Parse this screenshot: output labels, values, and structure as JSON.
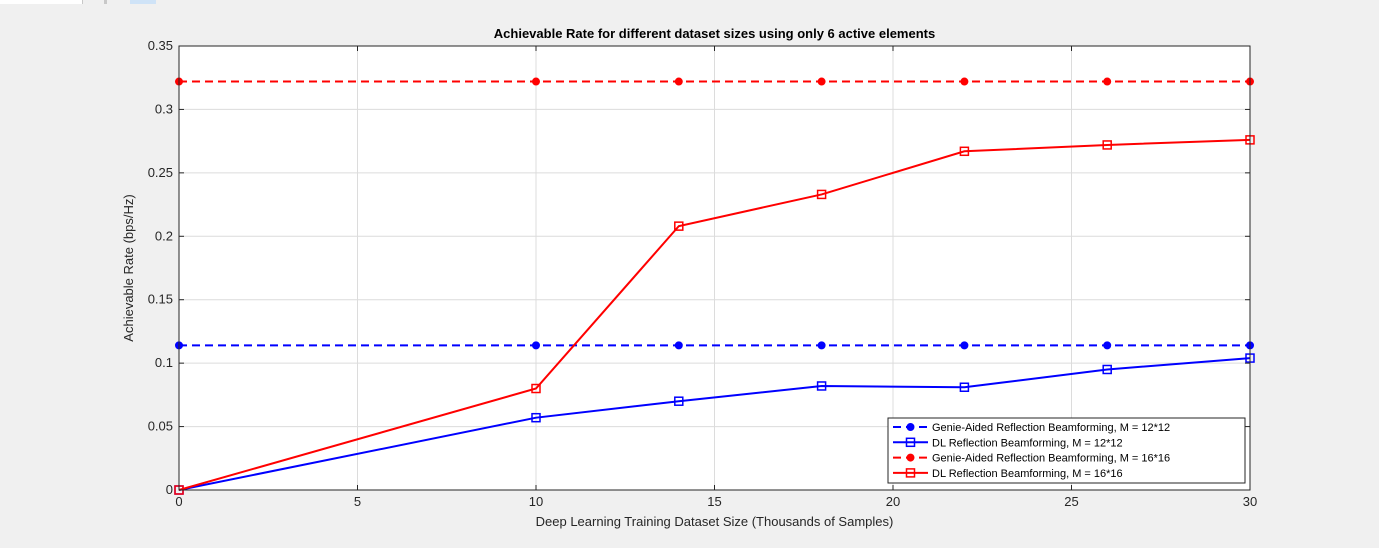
{
  "chart_data": {
    "type": "line",
    "title": "Achievable Rate for different dataset sizes using only 6 active elements",
    "xlabel": "Deep Learning Training Dataset Size (Thousands of Samples)",
    "ylabel": "Achievable Rate (bps/Hz)",
    "xlim": [
      0,
      30
    ],
    "ylim": [
      0,
      0.35
    ],
    "xticks": [
      0,
      5,
      10,
      15,
      20,
      25,
      30
    ],
    "yticks": [
      0,
      0.05,
      0.1,
      0.15,
      0.2,
      0.25,
      0.3,
      0.35
    ],
    "xtick_labels": [
      "0",
      "5",
      "10",
      "15",
      "20",
      "25",
      "30"
    ],
    "ytick_labels": [
      "0",
      "0.05",
      "0.1",
      "0.15",
      "0.2",
      "0.25",
      "0.3",
      "0.35"
    ],
    "grid": true,
    "legend_position": "bottom-right",
    "series": [
      {
        "name": "Genie-Aided Reflection Beamforming, M = 12*12",
        "color": "#0000ff",
        "line_style": "dashed",
        "marker": "dot",
        "x": [
          0,
          10,
          14,
          18,
          22,
          26,
          30
        ],
        "y": [
          0.114,
          0.114,
          0.114,
          0.114,
          0.114,
          0.114,
          0.114
        ]
      },
      {
        "name": "DL Reflection Beamforming, M = 12*12",
        "color": "#0000ff",
        "line_style": "solid",
        "marker": "square",
        "x": [
          0,
          10,
          14,
          18,
          22,
          26,
          30
        ],
        "y": [
          0,
          0.057,
          0.07,
          0.082,
          0.081,
          0.095,
          0.104
        ]
      },
      {
        "name": "Genie-Aided Reflection Beamforming, M = 16*16",
        "color": "#ff0000",
        "line_style": "dashed",
        "marker": "dot",
        "x": [
          0,
          10,
          14,
          18,
          22,
          26,
          30
        ],
        "y": [
          0.322,
          0.322,
          0.322,
          0.322,
          0.322,
          0.322,
          0.322
        ]
      },
      {
        "name": "DL Reflection Beamforming, M = 16*16",
        "color": "#ff0000",
        "line_style": "solid",
        "marker": "square",
        "x": [
          0,
          10,
          14,
          18,
          22,
          26,
          30
        ],
        "y": [
          0,
          0.08,
          0.208,
          0.233,
          0.267,
          0.272,
          0.276
        ]
      }
    ]
  }
}
